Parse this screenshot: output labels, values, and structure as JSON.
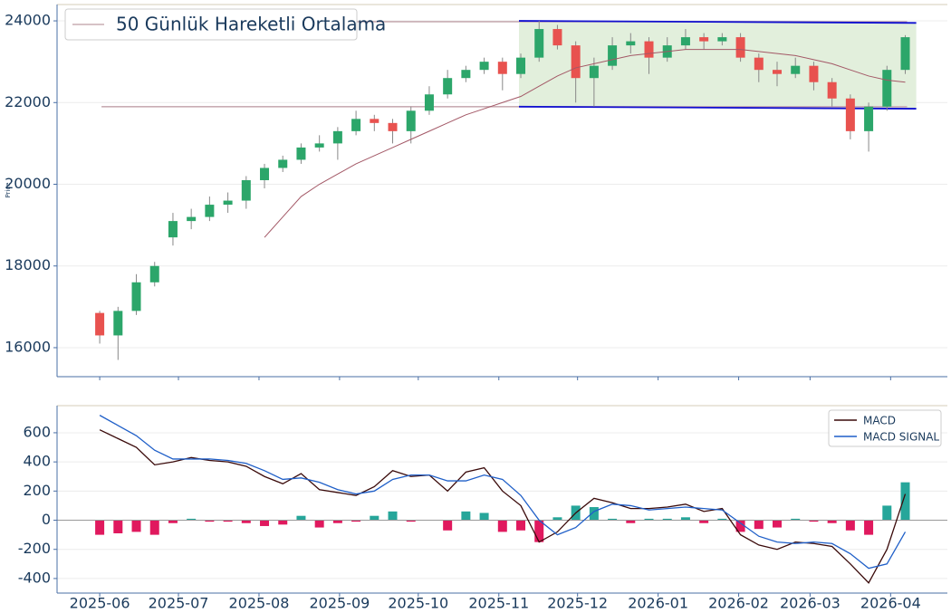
{
  "chart_data": [
    {
      "type": "candlestick",
      "y_label": "Price",
      "x": [
        0,
        1,
        2,
        3,
        4,
        5,
        6,
        7,
        8,
        9,
        10,
        11,
        12,
        13,
        14,
        15,
        16,
        17,
        18,
        19,
        20,
        21,
        22,
        23,
        24,
        25,
        26,
        27,
        28,
        29,
        30,
        31,
        32,
        33,
        34,
        35,
        36,
        37,
        38,
        39,
        40,
        41,
        42,
        43,
        44
      ],
      "open": [
        16850,
        16300,
        16900,
        17600,
        18700,
        19100,
        19200,
        19500,
        19600,
        20100,
        20400,
        20600,
        20900,
        21000,
        21300,
        21600,
        21500,
        21300,
        21800,
        22200,
        22600,
        22800,
        23000,
        22700,
        23100,
        23800,
        23400,
        22600,
        22900,
        23400,
        23500,
        23100,
        23400,
        23600,
        23500,
        23600,
        23100,
        22800,
        22700,
        22900,
        22500,
        22100,
        21300,
        21900,
        22800
      ],
      "high": [
        16900,
        17000,
        17800,
        18100,
        19300,
        19400,
        19700,
        19800,
        20200,
        20500,
        20700,
        21000,
        21200,
        21400,
        21800,
        21700,
        21600,
        21900,
        22400,
        22800,
        22900,
        23100,
        23100,
        23200,
        24000,
        23900,
        23500,
        23100,
        23600,
        23700,
        23600,
        23600,
        23800,
        23700,
        23700,
        23700,
        23200,
        23000,
        23100,
        23000,
        22600,
        22200,
        22000,
        22900,
        23650
      ],
      "low": [
        16100,
        15700,
        16800,
        17500,
        18500,
        18900,
        19100,
        19300,
        19400,
        19900,
        20300,
        20500,
        20800,
        20600,
        21200,
        21300,
        21000,
        21000,
        21700,
        22100,
        22500,
        22700,
        22300,
        22600,
        23000,
        23300,
        22000,
        21900,
        22800,
        23200,
        22700,
        23000,
        23300,
        23300,
        23400,
        23000,
        22500,
        22400,
        22600,
        22300,
        21900,
        21100,
        20800,
        21800,
        22700
      ],
      "close": [
        16300,
        16900,
        17600,
        18000,
        19100,
        19200,
        19500,
        19600,
        20100,
        20400,
        20600,
        20900,
        21000,
        21300,
        21600,
        21500,
        21300,
        21800,
        22200,
        22600,
        22800,
        23000,
        22700,
        23100,
        23800,
        23400,
        22600,
        22900,
        23400,
        23500,
        23100,
        23400,
        23600,
        23500,
        23600,
        23100,
        22800,
        22700,
        22900,
        22500,
        22100,
        21300,
        21900,
        22800,
        23600
      ],
      "up_color": "#2ca66a",
      "down_color": "#e8524f",
      "series": [
        {
          "name": "50 Günlük Hareketli Ortalama",
          "color": "#a35866",
          "values": [
            null,
            null,
            null,
            null,
            null,
            null,
            null,
            null,
            null,
            18700,
            19200,
            19700,
            20000,
            20250,
            20500,
            20700,
            20900,
            21100,
            21300,
            21500,
            21700,
            21850,
            22000,
            22150,
            22400,
            22650,
            22850,
            22950,
            23050,
            23150,
            23200,
            23250,
            23300,
            23300,
            23300,
            23300,
            23250,
            23200,
            23150,
            23050,
            22950,
            22800,
            22650,
            22550,
            22500
          ]
        }
      ],
      "hlines": [
        23980,
        21900
      ],
      "hline_color": "#c9adb4",
      "channel": {
        "x": [
          22.9,
          44.6
        ],
        "upper": [
          24000,
          23950
        ],
        "lower": [
          21900,
          21850
        ],
        "line_color": "#1010d0",
        "fill": "#e2efdc"
      },
      "xlim": [
        -2.33,
        46.3
      ],
      "ylim": [
        15290,
        24400
      ],
      "yticks": [
        16000,
        18000,
        20000,
        22000,
        24000
      ],
      "grid": true,
      "legend": "upper left"
    },
    {
      "type": "macd",
      "series": [
        {
          "name": "MACD",
          "color": "#3a0a0a",
          "values": [
            620,
            560,
            500,
            380,
            400,
            430,
            410,
            400,
            370,
            300,
            250,
            320,
            210,
            190,
            170,
            230,
            340,
            300,
            310,
            200,
            330,
            360,
            200,
            100,
            -150,
            -80,
            50,
            150,
            120,
            80,
            80,
            90,
            110,
            60,
            80,
            -100,
            -170,
            -200,
            -150,
            -160,
            -180,
            -300,
            -430,
            -200,
            180
          ]
        },
        {
          "name": "MACD SIGNAL",
          "color": "#1f5fc8",
          "values": [
            720,
            650,
            580,
            480,
            420,
            420,
            420,
            410,
            390,
            340,
            280,
            290,
            260,
            210,
            180,
            200,
            280,
            310,
            310,
            270,
            270,
            310,
            280,
            170,
            0,
            -100,
            -50,
            60,
            110,
            100,
            70,
            80,
            90,
            80,
            70,
            -20,
            -110,
            -150,
            -160,
            -150,
            -160,
            -230,
            -330,
            -300,
            -80
          ]
        }
      ],
      "histogram": {
        "values": [
          -100,
          -90,
          -80,
          -100,
          -20,
          10,
          -10,
          -10,
          -20,
          -40,
          -30,
          30,
          -50,
          -20,
          -10,
          30,
          60,
          -10,
          0,
          -70,
          60,
          50,
          -80,
          -70,
          -150,
          20,
          100,
          90,
          10,
          -20,
          10,
          10,
          20,
          -20,
          10,
          -80,
          -60,
          -50,
          10,
          -10,
          -20,
          -70,
          -100,
          100,
          260
        ],
        "positive_color": "#26a69a",
        "negative_color": "#e0195e"
      },
      "xlim": [
        -2.33,
        46.3
      ],
      "xticks": [
        {
          "value": 0,
          "label": "2025-06"
        },
        {
          "value": 4.3,
          "label": "2025-07"
        },
        {
          "value": 8.7,
          "label": "2025-08"
        },
        {
          "value": 13.1,
          "label": "2025-09"
        },
        {
          "value": 17.4,
          "label": "2025-10"
        },
        {
          "value": 21.8,
          "label": "2025-11"
        },
        {
          "value": 26.1,
          "label": "2025-12"
        },
        {
          "value": 30.5,
          "label": "2026-01"
        },
        {
          "value": 34.9,
          "label": "2026-02"
        },
        {
          "value": 38.8,
          "label": "2026-03"
        },
        {
          "value": 43.2,
          "label": "2026-04"
        }
      ],
      "ylim": [
        -500,
        786
      ],
      "yticks": [
        -400,
        -200,
        0,
        200,
        400,
        600
      ],
      "grid": true,
      "legend": "upper right"
    }
  ]
}
